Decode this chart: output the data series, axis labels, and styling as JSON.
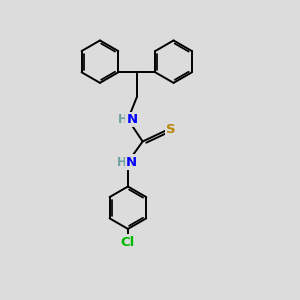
{
  "background_color": "#dcdcdc",
  "atom_colors": {
    "N": "#0000ff",
    "H": "#6fa0a0",
    "S": "#b8860b",
    "Cl": "#00bb00",
    "C": "#000000"
  },
  "bond_color": "#000000",
  "bond_width": 1.4,
  "figsize": [
    3.0,
    3.0
  ],
  "dpi": 100,
  "xlim": [
    0,
    10
  ],
  "ylim": [
    0,
    10
  ]
}
